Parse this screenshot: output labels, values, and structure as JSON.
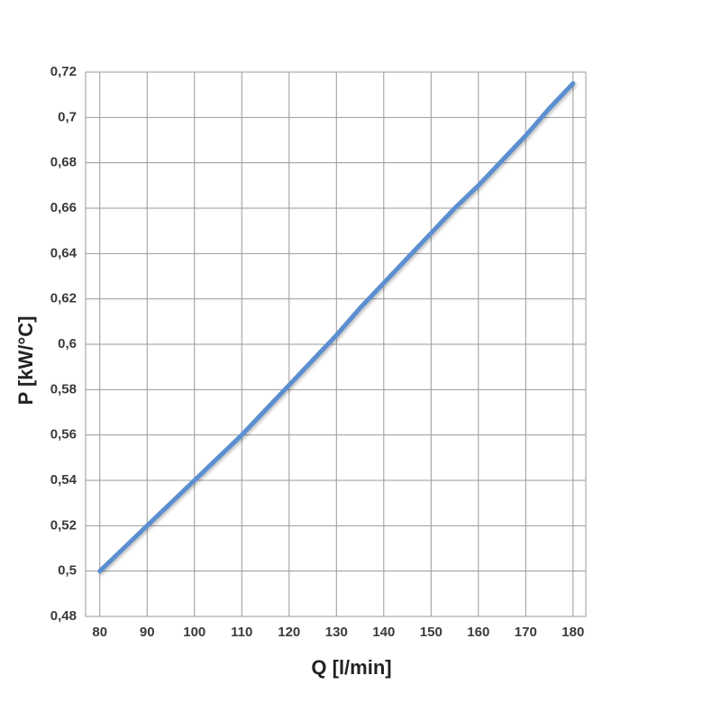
{
  "chart_data": {
    "type": "line",
    "x_label": "Q [l/min]",
    "y_label": "P [kW/°C]",
    "x": [
      80,
      85,
      90,
      95,
      100,
      105,
      110,
      115,
      120,
      125,
      130,
      135,
      140,
      145,
      150,
      155,
      160,
      165,
      170,
      175,
      180
    ],
    "values": [
      0.5,
      0.51,
      0.52,
      0.53,
      0.54,
      0.55,
      0.56,
      0.571,
      0.582,
      0.593,
      0.604,
      0.616,
      0.627,
      0.638,
      0.649,
      0.66,
      0.67,
      0.681,
      0.692,
      0.704,
      0.715
    ],
    "color": "#5b8fd0",
    "xlim": [
      77,
      182.7
    ],
    "xticks": [
      80,
      90,
      100,
      110,
      120,
      130,
      140,
      150,
      160,
      170,
      180
    ],
    "ylim": [
      0.48,
      0.72
    ],
    "yticks": [
      {
        "value": 0.48,
        "label": "0,48"
      },
      {
        "value": 0.5,
        "label": "0,5"
      },
      {
        "value": 0.52,
        "label": "0,52"
      },
      {
        "value": 0.54,
        "label": "0,54"
      },
      {
        "value": 0.56,
        "label": "0,56"
      },
      {
        "value": 0.58,
        "label": "0,58"
      },
      {
        "value": 0.6,
        "label": "0,6"
      },
      {
        "value": 0.62,
        "label": "0,62"
      },
      {
        "value": 0.64,
        "label": "0,64"
      },
      {
        "value": 0.66,
        "label": "0,66"
      },
      {
        "value": 0.68,
        "label": "0,68"
      },
      {
        "value": 0.7,
        "label": "0,7"
      },
      {
        "value": 0.72,
        "label": "0,72"
      }
    ],
    "grid": true
  }
}
